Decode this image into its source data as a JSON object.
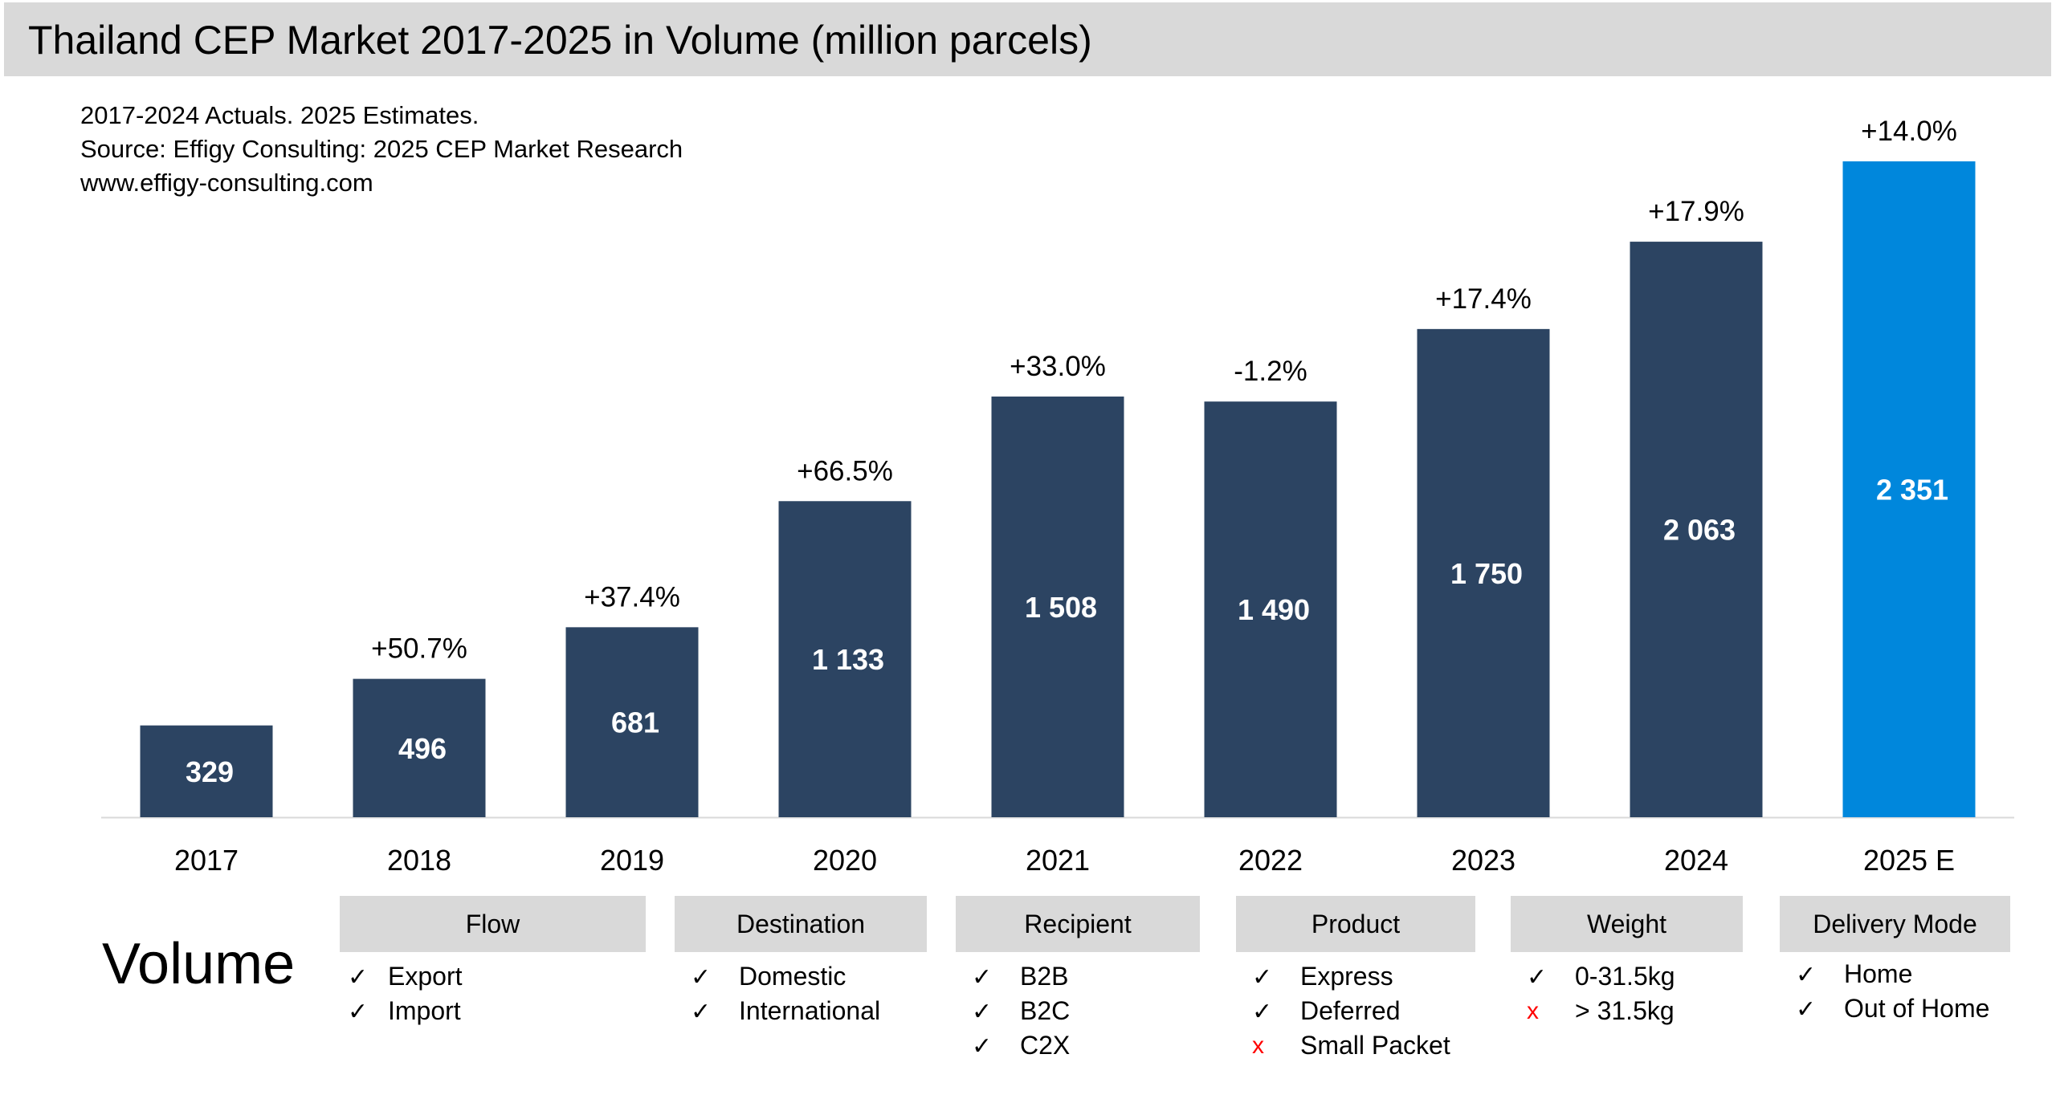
{
  "header": {
    "title": "Thailand CEP Market 2017-2025 in Volume (million parcels)"
  },
  "notes": [
    "2017-2024 Actuals. 2025 Estimates.",
    "Source: Effigy Consulting: 2025 CEP Market Research",
    "www.effigy-consulting.com"
  ],
  "colors": {
    "actual": "#2c4462",
    "estimate": "#0087dc",
    "header_bg": "#d9d9d9",
    "cross": "#ff0000"
  },
  "chart_data": {
    "type": "bar",
    "title": "Thailand CEP Market 2017-2025 in Volume (million parcels)",
    "categories": [
      "2017",
      "2018",
      "2019",
      "2020",
      "2021",
      "2022",
      "2023",
      "2024",
      "2025 E"
    ],
    "values": [
      329,
      496,
      681,
      1133,
      1508,
      1490,
      1750,
      2063,
      2351
    ],
    "value_labels": [
      "329",
      "496",
      "681",
      "1 133",
      "1 508",
      "1 490",
      "1 750",
      "2 063",
      "2 351"
    ],
    "growth_labels": [
      "",
      "+50.7%",
      "+37.4%",
      "+66.5%",
      "+33.0%",
      "-1.2%",
      "+17.4%",
      "+17.9%",
      "+14.0%"
    ],
    "estimate_flags": [
      false,
      false,
      false,
      false,
      false,
      false,
      false,
      false,
      true
    ],
    "ylim": [
      0,
      2351
    ],
    "grid": false,
    "legend": "none"
  },
  "segmentation": {
    "label": "Volume",
    "groups": [
      {
        "title": "Flow",
        "items": [
          {
            "mark": "✓",
            "included": true,
            "label": "Export"
          },
          {
            "mark": "✓",
            "included": true,
            "label": "Import"
          }
        ]
      },
      {
        "title": "Destination",
        "items": [
          {
            "mark": "✓",
            "included": true,
            "label": "Domestic"
          },
          {
            "mark": "✓",
            "included": true,
            "label": "International"
          }
        ]
      },
      {
        "title": "Recipient",
        "items": [
          {
            "mark": "✓",
            "included": true,
            "label": "B2B"
          },
          {
            "mark": "✓",
            "included": true,
            "label": "B2C"
          },
          {
            "mark": "✓",
            "included": true,
            "label": "C2X"
          }
        ]
      },
      {
        "title": "Product",
        "items": [
          {
            "mark": "✓",
            "included": true,
            "label": "Express"
          },
          {
            "mark": "✓",
            "included": true,
            "label": "Deferred"
          },
          {
            "mark": "x",
            "included": false,
            "label": "Small Packet"
          }
        ]
      },
      {
        "title": "Weight",
        "items": [
          {
            "mark": "✓",
            "included": true,
            "label": "0-31.5kg"
          },
          {
            "mark": "x",
            "included": false,
            "label": "> 31.5kg"
          }
        ]
      },
      {
        "title": "Delivery Mode",
        "items": [
          {
            "mark": "✓",
            "included": true,
            "label": "Home"
          },
          {
            "mark": "✓",
            "included": true,
            "label": "Out of Home"
          }
        ]
      }
    ]
  }
}
